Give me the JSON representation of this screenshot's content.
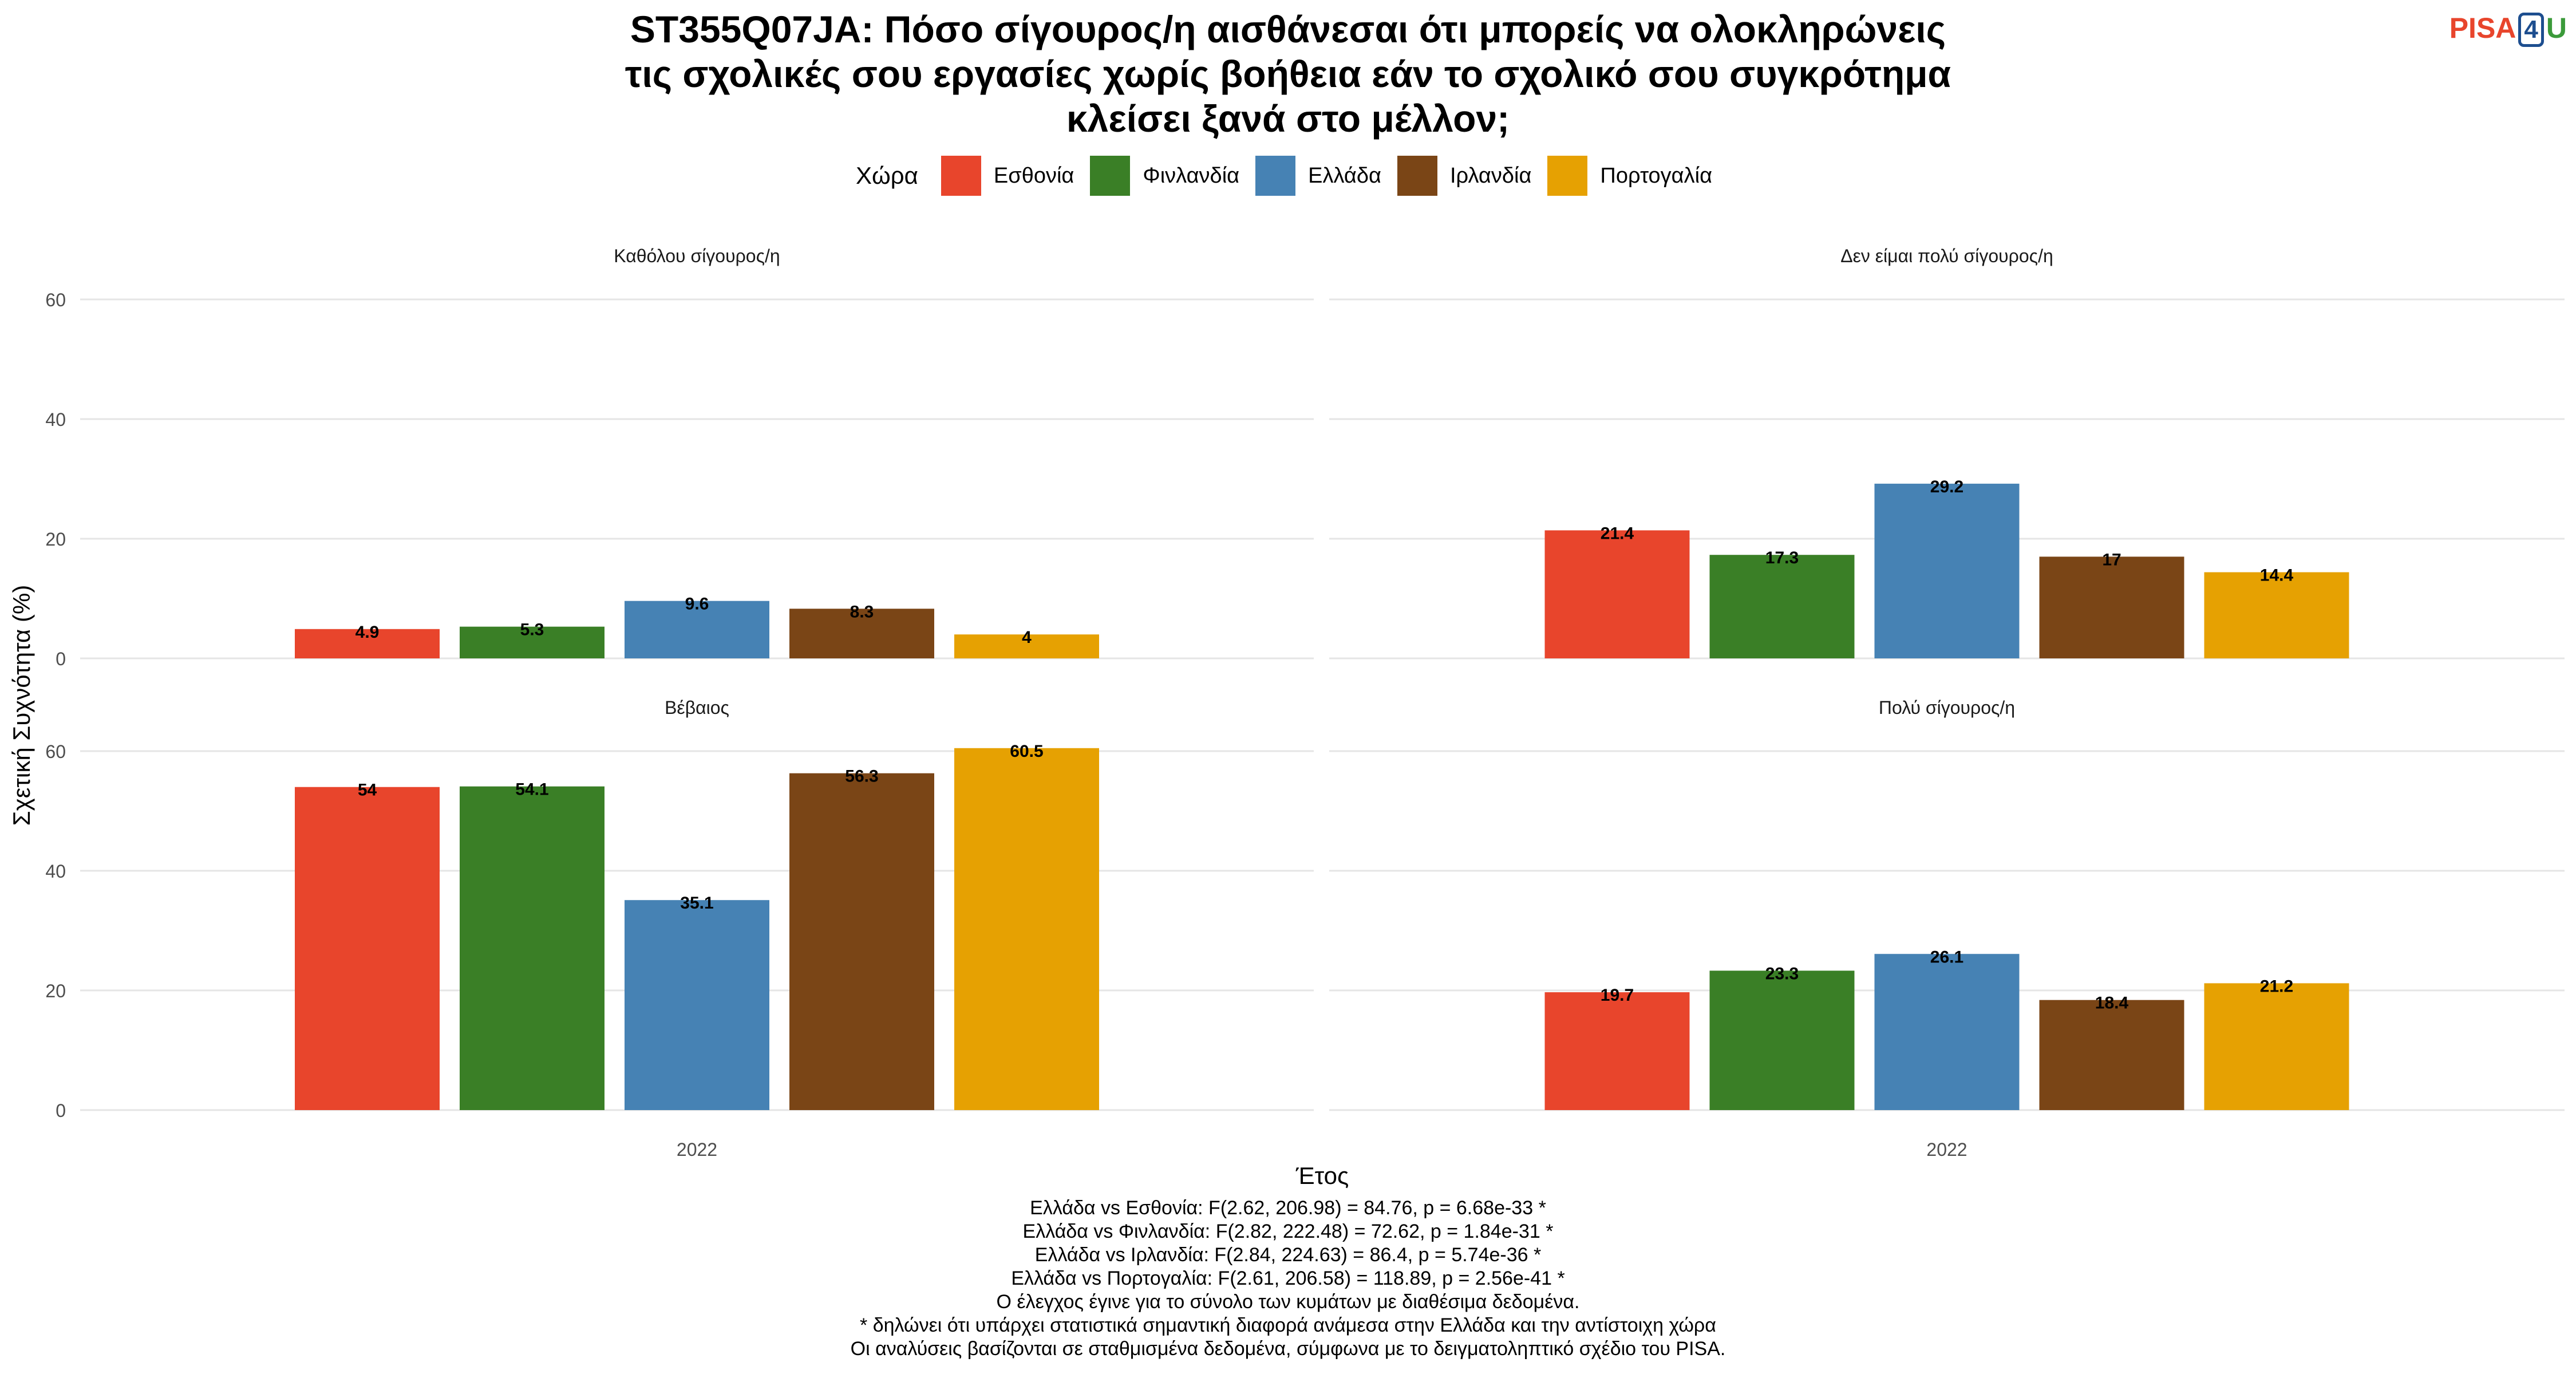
{
  "title_lines": [
    "ST355Q07JA: Πόσο σίγουρος/η αισθάνεσαι ότι μπορείς να ολοκληρώνεις",
    "τις σχολικές σου εργασίες χωρίς βοήθεια εάν το σχολικό σου συγκρότημα",
    "κλείσει ξανά στο μέλλον;"
  ],
  "logo": {
    "part1": "PISA",
    "part2": "4",
    "part3": "U"
  },
  "legend": {
    "title": "Χώρα",
    "items": [
      {
        "label": "Εσθονία",
        "color": "#e8452c"
      },
      {
        "label": "Φινλανδία",
        "color": "#3a7f26"
      },
      {
        "label": "Ελλάδα",
        "color": "#4682b4"
      },
      {
        "label": "Ιρλανδία",
        "color": "#7a4516"
      },
      {
        "label": "Πορτογαλία",
        "color": "#e6a102"
      }
    ]
  },
  "chart_data": {
    "type": "bar",
    "xlabel": "Έτος",
    "ylabel": "Σχετική Συχνότητα (%)",
    "ylim": [
      0,
      60
    ],
    "yticks": [
      0,
      20,
      40,
      60
    ],
    "grid": true,
    "legend_position": "top",
    "categories": [
      "2022"
    ],
    "series_names": [
      "Εσθονία",
      "Φινλανδία",
      "Ελλάδα",
      "Ιρλανδία",
      "Πορτογαλία"
    ],
    "facets": [
      {
        "title": "Καθόλου σίγουρος/η",
        "values": [
          4.9,
          5.3,
          9.6,
          8.3,
          4
        ]
      },
      {
        "title": "Δεν είμαι πολύ σίγουρος/η",
        "values": [
          21.4,
          17.3,
          29.2,
          17,
          14.4
        ]
      },
      {
        "title": "Βέβαιος",
        "values": [
          54,
          54.1,
          35.1,
          56.3,
          60.5
        ]
      },
      {
        "title": "Πολύ σίγουρος/η",
        "values": [
          19.7,
          23.3,
          26.1,
          18.4,
          21.2
        ]
      }
    ]
  },
  "caption_lines": [
    "Ελλάδα vs Εσθονία: F(2.62, 206.98) = 84.76, p = 6.68e-33 *",
    "Ελλάδα vs Φινλανδία: F(2.82, 222.48) = 72.62, p = 1.84e-31 *",
    "Ελλάδα vs Ιρλανδία: F(2.84, 224.63) = 86.4, p = 5.74e-36 *",
    "Ελλάδα vs Πορτογαλία: F(2.61, 206.58) = 118.89, p = 2.56e-41 *",
    "Ο έλεγχος έγινε για το σύνολο των κυμάτων με διαθέσιμα δεδομένα.",
    "* δηλώνει ότι υπάρχει στατιστικά σημαντική διαφορά ανάμεσα στην Ελλάδα και την αντίστοιχη χώρα",
    "Οι αναλύσεις βασίζονται σε σταθμισμένα δεδομένα, σύμφωνα με το δειγματοληπτικό σχέδιο του PISA."
  ]
}
